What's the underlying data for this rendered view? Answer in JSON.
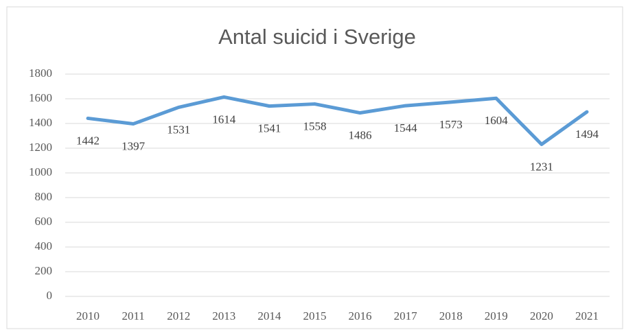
{
  "chart_data": {
    "type": "line",
    "title": "Antal suicid i Sverige",
    "categories": [
      "2010",
      "2011",
      "2012",
      "2013",
      "2014",
      "2015",
      "2016",
      "2017",
      "2018",
      "2019",
      "2020",
      "2021"
    ],
    "values": [
      1442,
      1397,
      1531,
      1614,
      1541,
      1558,
      1486,
      1544,
      1573,
      1604,
      1231,
      1494
    ],
    "color": "#5b9bd5",
    "ylim": [
      0,
      1800
    ],
    "yticks": [
      0,
      200,
      400,
      600,
      800,
      1000,
      1200,
      1400,
      1600,
      1800
    ],
    "grid": true
  }
}
